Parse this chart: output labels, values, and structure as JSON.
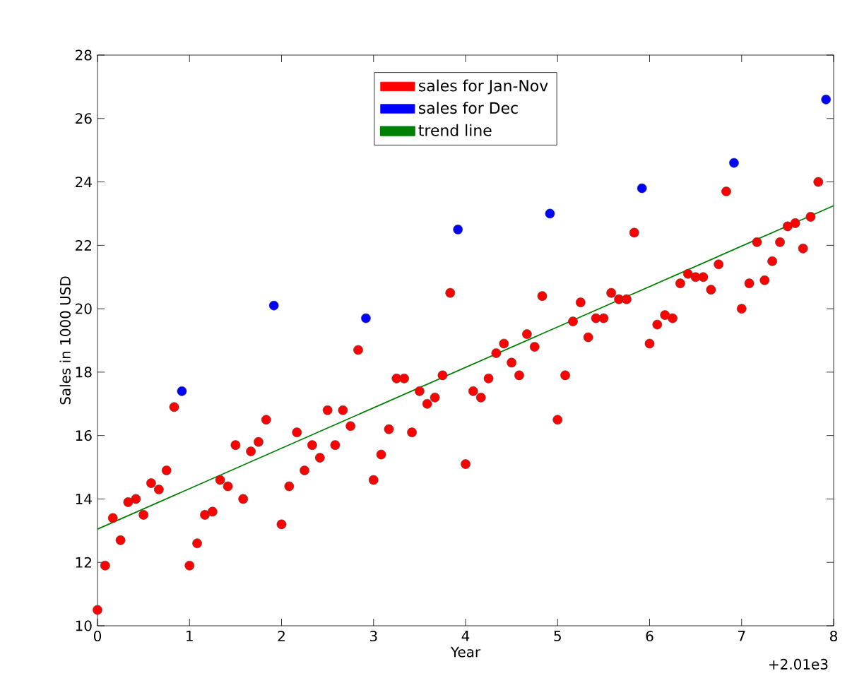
{
  "chart_data": {
    "type": "scatter",
    "xlabel": "Year",
    "ylabel": "Sales in 1000 USD",
    "xlim": [
      0,
      8
    ],
    "ylim": [
      10,
      28
    ],
    "xticks": [
      0,
      1,
      2,
      3,
      4,
      5,
      6,
      7,
      8
    ],
    "yticks": [
      10,
      12,
      14,
      16,
      18,
      20,
      22,
      24,
      26,
      28
    ],
    "legend": "top",
    "grid": false,
    "annotations": [
      "+2.01e3"
    ],
    "series": [
      {
        "name": "sales for Jan-Nov",
        "marker": "circle",
        "color": "#ff0000",
        "x": [
          0,
          0.083,
          0.167,
          0.25,
          0.333,
          0.417,
          0.5,
          0.583,
          0.667,
          0.75,
          0.833,
          1,
          1.083,
          1.167,
          1.25,
          1.333,
          1.417,
          1.5,
          1.583,
          1.667,
          1.75,
          1.833,
          2,
          2.083,
          2.167,
          2.25,
          2.333,
          2.417,
          2.5,
          2.583,
          2.667,
          2.75,
          2.833,
          3,
          3.083,
          3.167,
          3.25,
          3.333,
          3.417,
          3.5,
          3.583,
          3.667,
          3.75,
          3.833,
          4,
          4.083,
          4.167,
          4.25,
          4.333,
          4.417,
          4.5,
          4.583,
          4.667,
          4.75,
          4.833,
          5,
          5.083,
          5.167,
          5.25,
          5.333,
          5.417,
          5.5,
          5.583,
          5.667,
          5.75,
          5.833,
          6,
          6.083,
          6.167,
          6.25,
          6.333,
          6.417,
          6.5,
          6.583,
          6.667,
          6.75,
          6.833,
          7,
          7.083,
          7.167,
          7.25,
          7.333,
          7.417,
          7.5,
          7.583,
          7.667,
          7.75,
          7.833
        ],
        "values": [
          10.5,
          11.9,
          13.4,
          12.7,
          13.9,
          14.0,
          13.5,
          14.5,
          14.3,
          14.9,
          16.9,
          11.9,
          12.6,
          13.5,
          13.6,
          14.6,
          14.4,
          15.7,
          14.0,
          15.5,
          15.8,
          16.5,
          13.2,
          14.4,
          16.1,
          14.9,
          15.7,
          15.3,
          16.8,
          15.7,
          16.8,
          16.3,
          18.7,
          14.6,
          15.4,
          16.2,
          17.8,
          17.8,
          16.1,
          17.4,
          17.0,
          17.2,
          17.9,
          20.5,
          15.1,
          17.4,
          17.2,
          17.8,
          18.6,
          18.9,
          18.3,
          17.9,
          19.2,
          18.8,
          20.4,
          16.5,
          17.9,
          19.6,
          20.2,
          19.1,
          19.7,
          19.7,
          20.5,
          20.3,
          20.3,
          22.4,
          18.9,
          19.5,
          19.8,
          19.7,
          20.8,
          21.1,
          21.0,
          21.0,
          20.6,
          21.4,
          23.7,
          20.0,
          20.8,
          22.1,
          20.9,
          21.5,
          22.1,
          22.6,
          22.7,
          21.9,
          22.9,
          24.0
        ]
      },
      {
        "name": "sales for Dec",
        "marker": "circle",
        "color": "#0000ff",
        "x": [
          0.917,
          1.917,
          2.917,
          3.917,
          4.917,
          5.917,
          6.917,
          7.917
        ],
        "values": [
          17.4,
          20.1,
          19.7,
          22.5,
          23.0,
          23.8,
          24.6,
          26.6
        ]
      },
      {
        "name": "trend line",
        "type": "line",
        "marker": "none",
        "color": "#008000",
        "x": [
          0,
          8
        ],
        "values": [
          13.05,
          23.25
        ]
      }
    ]
  }
}
